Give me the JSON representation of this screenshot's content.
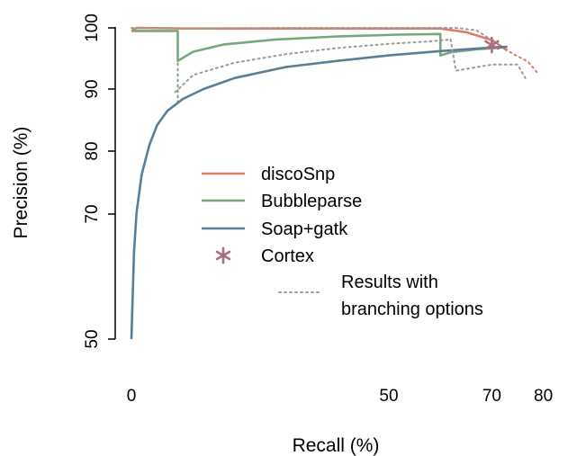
{
  "chart_data": {
    "type": "line",
    "xlabel": "Recall (%)",
    "ylabel": "Precision (%)",
    "xlim": [
      0,
      80
    ],
    "ylim": [
      50,
      100
    ],
    "x_ticks": [
      "0",
      "50",
      "70",
      "80"
    ],
    "y_ticks": [
      "50",
      "70",
      "80",
      "90",
      "100"
    ],
    "grid": false,
    "legend_position": "center",
    "colors": {
      "discoSnp": "#e07b65",
      "Bubbleparse": "#7aa67f",
      "Soap+gatk": "#5a7e98",
      "Cortex": "#a8707e",
      "branching": "#9a9a9a"
    },
    "legend": [
      {
        "label": "discoSnp",
        "style": "line",
        "color": "#e07b65"
      },
      {
        "label": "Bubbleparse",
        "style": "line",
        "color": "#7aa67f"
      },
      {
        "label": "Soap+gatk",
        "style": "line",
        "color": "#5a7e98"
      },
      {
        "label": "Cortex",
        "style": "star",
        "color": "#a8707e"
      },
      {
        "label": "Results with\nbranching options",
        "style": "dotted",
        "color": "#9a9a9a"
      }
    ],
    "series": [
      {
        "name": "discoSnp",
        "style": "solid",
        "color": "#e07b65",
        "points": [
          [
            0,
            99.5
          ],
          [
            1,
            100
          ],
          [
            10,
            99.9
          ],
          [
            40,
            99.9
          ],
          [
            60,
            99.9
          ],
          [
            65,
            99.3
          ],
          [
            70,
            98
          ],
          [
            73,
            96.3
          ]
        ]
      },
      {
        "name": "discoSnp",
        "style": "dotted",
        "color": "#e07b65",
        "points": [
          [
            70,
            98
          ],
          [
            74,
            95.8
          ],
          [
            77,
            94.5
          ],
          [
            79,
            92.5
          ]
        ]
      },
      {
        "name": "Bubbleparse",
        "style": "solid",
        "color": "#7aa67f",
        "points": [
          [
            0,
            99.5
          ],
          [
            9,
            99.5
          ],
          [
            9,
            94.6
          ],
          [
            12,
            96.1
          ],
          [
            18,
            97.3
          ],
          [
            28,
            98.1
          ],
          [
            40,
            98.6
          ],
          [
            52,
            98.9
          ],
          [
            60,
            99
          ],
          [
            60,
            95.5
          ],
          [
            62,
            96
          ],
          [
            67,
            96.5
          ],
          [
            72,
            96.8
          ]
        ]
      },
      {
        "name": "Bubbleparse",
        "style": "dotted",
        "color": "#7aa67f",
        "points": [
          [
            9,
            99.5
          ],
          [
            9,
            87.5
          ]
        ]
      },
      {
        "name": "Soap+gatk",
        "style": "solid",
        "color": "#5a7e98",
        "points": [
          [
            0,
            50
          ],
          [
            0.5,
            64
          ],
          [
            1,
            70.2
          ],
          [
            2,
            76.3
          ],
          [
            3.5,
            81
          ],
          [
            5,
            84.2
          ],
          [
            7,
            86.5
          ],
          [
            10,
            88.4
          ],
          [
            14,
            90
          ],
          [
            20,
            91.8
          ],
          [
            30,
            93.6
          ],
          [
            40,
            94.6
          ],
          [
            50,
            95.5
          ],
          [
            60,
            96.2
          ],
          [
            65,
            96.5
          ],
          [
            70,
            96.8
          ],
          [
            73,
            96.9
          ]
        ]
      },
      {
        "name": "Results with branching options",
        "style": "dotted",
        "color": "#9a9a9a",
        "points": [
          [
            0,
            100
          ],
          [
            1,
            100
          ],
          [
            10,
            99.9
          ],
          [
            30,
            100
          ],
          [
            55,
            100
          ],
          [
            63,
            100
          ],
          [
            67,
            99.6
          ],
          [
            70,
            98
          ]
        ]
      },
      {
        "name": "Results with branching options",
        "style": "dotted",
        "color": "#9a9a9a",
        "points": [
          [
            8.5,
            89.5
          ],
          [
            12,
            92.3
          ],
          [
            20,
            94.3
          ],
          [
            30,
            95.7
          ],
          [
            40,
            96.7
          ],
          [
            50,
            97.4
          ],
          [
            58,
            97.8
          ],
          [
            62,
            98.1
          ]
        ]
      },
      {
        "name": "Results with branching options",
        "style": "dotted",
        "color": "#9a9a9a",
        "points": [
          [
            62,
            98.1
          ],
          [
            63,
            93
          ],
          [
            70,
            94
          ],
          [
            75,
            94
          ],
          [
            76.5,
            91.8
          ]
        ]
      }
    ],
    "markers": [
      {
        "name": "Cortex",
        "symbol": "star",
        "color": "#a8707e",
        "x": 70,
        "y": 97.2
      }
    ]
  }
}
